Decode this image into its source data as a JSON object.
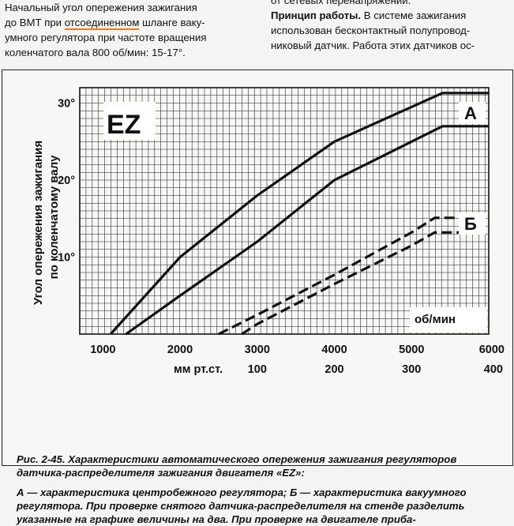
{
  "top_text": {
    "left_line1": "Начальный угол опережения зажигания",
    "left_line2_before": "до ВМТ при ",
    "left_line2_underlined": "отсоединенном",
    "left_line2_after": " шланге ваку-",
    "left_line3": "умного регулятора при частоте вращения",
    "left_line4": "коленчатого вала 800 об/мин: 15-17°.",
    "right_line1": "от сетевых перенапряжений.",
    "right_line2_bold": "Принцип работы.",
    "right_line2_rest": " В системе зажигания",
    "right_line3": "использован бесконтактный полупровод-",
    "right_line4": "никовый датчик. Работа этих датчиков ос-"
  },
  "figure": {
    "caption_title": "Рис. 2-45. Характеристики автоматического опережения зажигания регуляторов датчика-распределителя зажигания двигателя «EZ»:",
    "caption_body": "А — характеристика центробежного регулятора; Б — характеристика вакуумного регулятора. При проверке снятого датчика-распределителя на стенде разделить указанные на графике величины на два. При проверке на двигателе приба-"
  },
  "colors": {
    "underline": "#f07a18",
    "ink": "#111111",
    "grid": "#1a1a1a"
  },
  "chart_data": {
    "type": "line",
    "title": "EZ",
    "ylabel_line1": "Угол опережения зажигания",
    "ylabel_line2": "по коленчатому валу",
    "x_unit_label": "об/мин",
    "x_ticks": [
      "1000",
      "2000",
      "3000",
      "4000",
      "5000",
      "6000"
    ],
    "x2_label": "мм рт.ст.",
    "x2_ticks": [
      "100",
      "200",
      "300",
      "400"
    ],
    "y_ticks": [
      "10°",
      "20°",
      "30°"
    ],
    "xlim": [
      700,
      6000
    ],
    "ylim": [
      0,
      32
    ],
    "grid": true,
    "series": [
      {
        "name": "А",
        "style": "solid",
        "x": [
          1100,
          2000,
          3000,
          4000,
          5000,
          5400,
          6000
        ],
        "y": [
          0,
          10,
          18,
          25,
          29.5,
          31.3,
          31.3
        ]
      },
      {
        "name": "А",
        "style": "solid",
        "x": [
          1300,
          2000,
          3000,
          4000,
          5000,
          5400,
          6000
        ],
        "y": [
          0,
          5,
          12,
          20,
          25,
          27,
          27
        ]
      },
      {
        "name": "Б",
        "style": "dashed",
        "x": [
          2500,
          3000,
          4000,
          5000,
          5300,
          5700
        ],
        "y": [
          0,
          2.5,
          7.7,
          13.2,
          15.1,
          15.1
        ]
      },
      {
        "name": "Б",
        "style": "dashed",
        "x": [
          2800,
          3000,
          4000,
          5000,
          5300,
          5700
        ],
        "y": [
          0,
          1.3,
          6.5,
          11.5,
          13.2,
          13.2
        ]
      }
    ]
  }
}
